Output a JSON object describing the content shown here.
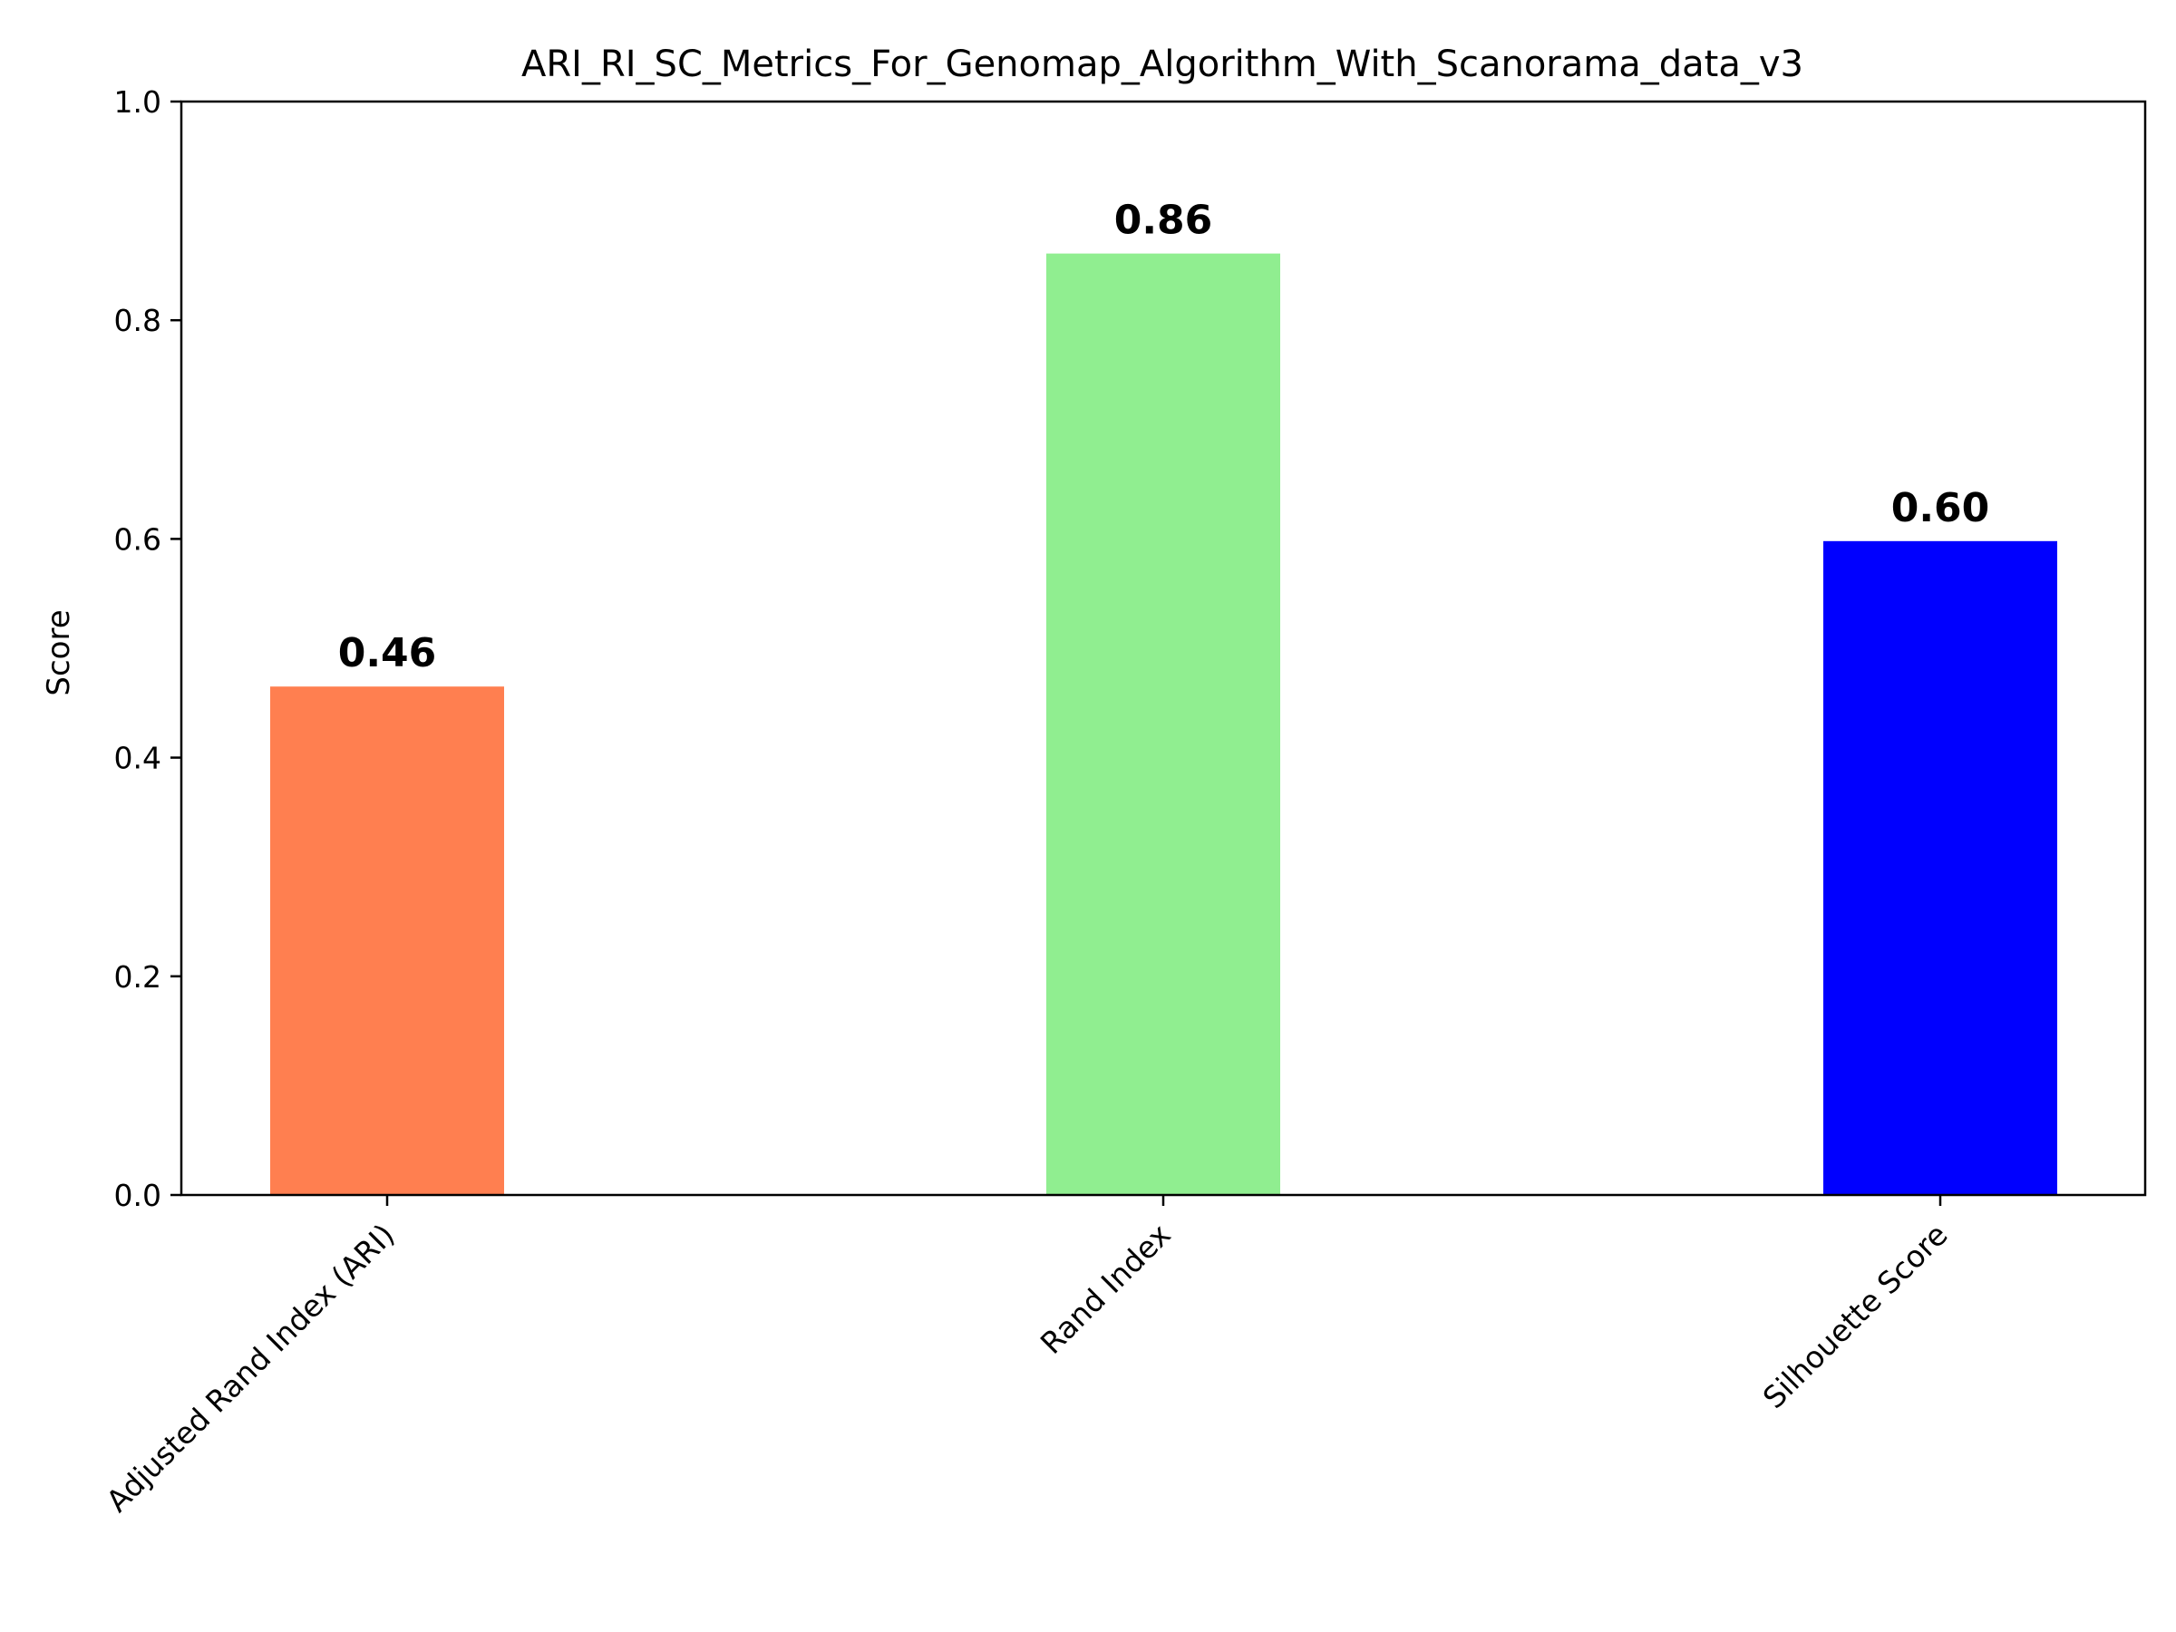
{
  "chart_data": {
    "type": "bar",
    "title": "ARI_RI_SC_Metrics_For_Genomap_Algorithm_With_Scanorama_data_v3",
    "xlabel": "",
    "ylabel": "Score",
    "ylim": [
      0,
      1.0
    ],
    "yticks": [
      0.0,
      0.2,
      0.4,
      0.6,
      0.8,
      1.0
    ],
    "ytick_labels": [
      "0.0",
      "0.2",
      "0.4",
      "0.6",
      "0.8",
      "1.0"
    ],
    "categories": [
      "Adjusted Rand Index (ARI)",
      "Rand Index",
      "Silhouette Score"
    ],
    "values": [
      0.465,
      0.861,
      0.598
    ],
    "value_labels": [
      "0.46",
      "0.86",
      "0.60"
    ],
    "colors": [
      "#FF7F50",
      "#90EE90",
      "#0000FF"
    ],
    "grid": false,
    "legend": "none"
  }
}
